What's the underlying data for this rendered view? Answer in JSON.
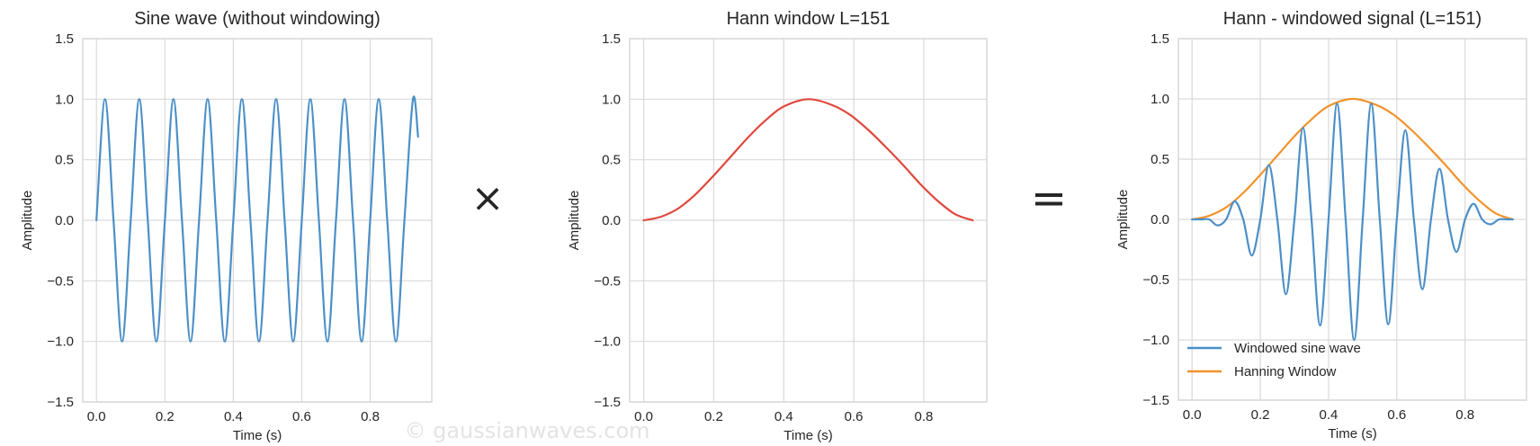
{
  "figure": {
    "watermark": "© gaussianwaves.com",
    "multiply_symbol": "×",
    "equals_symbol": "="
  },
  "chart_data": [
    {
      "type": "line",
      "title": "Sine wave (without windowing)",
      "xlabel": "Time (s)",
      "ylabel": "Amplitude",
      "xlim": [
        -0.04,
        0.98
      ],
      "ylim": [
        -1.5,
        1.5
      ],
      "xticks": [
        0.0,
        0.2,
        0.4,
        0.6,
        0.8
      ],
      "xtick_labels": [
        "0.0",
        "0.2",
        "0.4",
        "0.6",
        "0.8"
      ],
      "yticks": [
        -1.5,
        -1.0,
        -0.5,
        0.0,
        0.5,
        1.0,
        1.5
      ],
      "ytick_labels": [
        "−1.5",
        "−1.0",
        "−0.5",
        "0.0",
        "0.5",
        "1.0",
        "1.5"
      ],
      "grid": true,
      "series": [
        {
          "color": "#4c8fc7",
          "x": [
            0.0,
            0.025,
            0.05,
            0.075,
            0.1,
            0.125,
            0.15,
            0.175,
            0.2,
            0.225,
            0.25,
            0.275,
            0.3,
            0.325,
            0.35,
            0.375,
            0.4,
            0.425,
            0.45,
            0.475,
            0.5,
            0.525,
            0.55,
            0.575,
            0.6,
            0.625,
            0.65,
            0.675,
            0.7,
            0.725,
            0.75,
            0.775,
            0.8,
            0.825,
            0.85,
            0.875,
            0.9,
            0.925,
            0.94
          ],
          "y": [
            0.0,
            1.0,
            0.0,
            -1.0,
            0.0,
            1.0,
            0.0,
            -1.0,
            0.0,
            1.0,
            0.0,
            -1.0,
            0.0,
            1.0,
            0.0,
            -1.0,
            0.0,
            1.0,
            0.0,
            -1.0,
            0.0,
            1.0,
            0.0,
            -1.0,
            0.0,
            1.0,
            0.0,
            -1.0,
            0.0,
            1.0,
            0.0,
            -1.0,
            0.0,
            1.0,
            0.0,
            -1.0,
            0.0,
            1.0,
            0.69
          ]
        }
      ]
    },
    {
      "type": "line",
      "title": "Hann window L=151",
      "xlabel": "Time (s)",
      "ylabel": "Amplitude",
      "xlim": [
        -0.04,
        0.98
      ],
      "ylim": [
        -1.5,
        1.5
      ],
      "xticks": [
        0.0,
        0.2,
        0.4,
        0.6,
        0.8
      ],
      "xtick_labels": [
        "0.0",
        "0.2",
        "0.4",
        "0.6",
        "0.8"
      ],
      "yticks": [
        -1.5,
        -1.0,
        -0.5,
        0.0,
        0.5,
        1.0,
        1.5
      ],
      "ytick_labels": [
        "−1.5",
        "−1.0",
        "−0.5",
        "0.0",
        "0.5",
        "1.0",
        "1.5"
      ],
      "grid": true,
      "series": [
        {
          "color": "#e0483e",
          "x": [
            0.0,
            0.05,
            0.1,
            0.15,
            0.2,
            0.25,
            0.3,
            0.35,
            0.4,
            0.47,
            0.54,
            0.59,
            0.64,
            0.69,
            0.74,
            0.79,
            0.84,
            0.89,
            0.94
          ],
          "y": [
            0.0,
            0.03,
            0.1,
            0.22,
            0.37,
            0.53,
            0.69,
            0.83,
            0.94,
            1.0,
            0.95,
            0.87,
            0.75,
            0.61,
            0.46,
            0.3,
            0.16,
            0.05,
            0.0
          ]
        }
      ]
    },
    {
      "type": "line",
      "title": "Hann - windowed signal (L=151)",
      "xlabel": "Time (s)",
      "ylabel": "Amplitude",
      "xlim": [
        -0.04,
        0.98
      ],
      "ylim": [
        -1.5,
        1.5
      ],
      "xticks": [
        0.0,
        0.2,
        0.4,
        0.6,
        0.8
      ],
      "xtick_labels": [
        "0.0",
        "0.2",
        "0.4",
        "0.6",
        "0.8"
      ],
      "yticks": [
        -1.5,
        -1.0,
        -0.5,
        0.0,
        0.5,
        1.0,
        1.5
      ],
      "ytick_labels": [
        "−1.5",
        "−1.0",
        "−0.5",
        "0.0",
        "0.5",
        "1.0",
        "1.5"
      ],
      "grid": true,
      "legend": "lower-left",
      "series": [
        {
          "name": "Windowed sine wave",
          "color": "#4c8fc7",
          "x": [
            0.0,
            0.025,
            0.05,
            0.075,
            0.1,
            0.125,
            0.15,
            0.175,
            0.2,
            0.225,
            0.25,
            0.275,
            0.3,
            0.325,
            0.35,
            0.375,
            0.4,
            0.425,
            0.45,
            0.475,
            0.5,
            0.525,
            0.55,
            0.575,
            0.6,
            0.625,
            0.65,
            0.675,
            0.7,
            0.725,
            0.75,
            0.775,
            0.8,
            0.825,
            0.85,
            0.875,
            0.9,
            0.925,
            0.94
          ],
          "y": [
            0.0,
            0.0,
            0.0,
            -0.05,
            0.0,
            0.15,
            0.0,
            -0.3,
            0.0,
            0.45,
            0.0,
            -0.62,
            0.0,
            0.76,
            0.0,
            -0.88,
            0.0,
            0.96,
            0.0,
            -1.0,
            0.0,
            0.96,
            0.0,
            -0.87,
            0.0,
            0.74,
            0.0,
            -0.58,
            0.0,
            0.42,
            0.0,
            -0.27,
            0.0,
            0.13,
            0.0,
            -0.04,
            0.0,
            0.0,
            0.0
          ]
        },
        {
          "name": "Hanning Window",
          "color": "#f0932b",
          "x": [
            0.0,
            0.05,
            0.1,
            0.15,
            0.2,
            0.25,
            0.3,
            0.35,
            0.4,
            0.47,
            0.54,
            0.59,
            0.64,
            0.69,
            0.74,
            0.79,
            0.84,
            0.89,
            0.94
          ],
          "y": [
            0.0,
            0.03,
            0.1,
            0.22,
            0.37,
            0.53,
            0.69,
            0.83,
            0.94,
            1.0,
            0.95,
            0.87,
            0.75,
            0.61,
            0.46,
            0.3,
            0.16,
            0.05,
            0.0
          ]
        }
      ]
    }
  ]
}
